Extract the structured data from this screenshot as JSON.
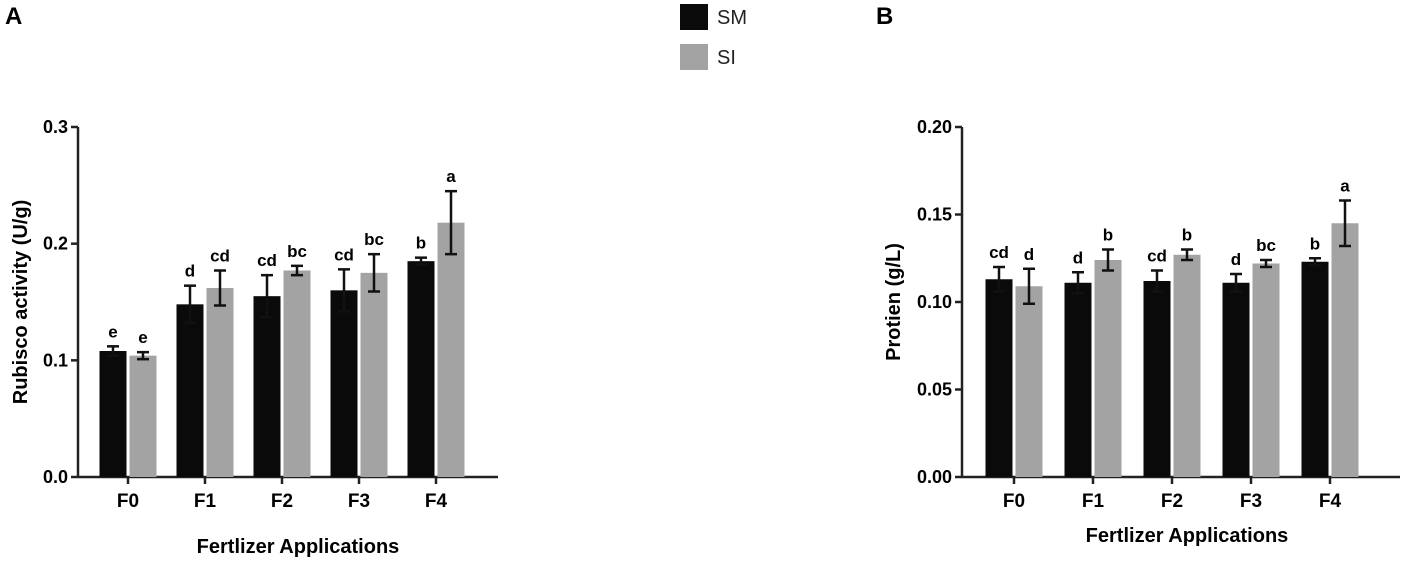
{
  "legend": [
    {
      "label": "SM",
      "color": "#0a0a0a"
    },
    {
      "label": "SI",
      "color": "#a3a3a3"
    }
  ],
  "chart_data": [
    {
      "panel": "A",
      "type": "bar",
      "categories": [
        "F0",
        "F1",
        "F2",
        "F3",
        "F4"
      ],
      "xlabel": "Fertlizer Applications",
      "ylabel": "Rubisco activity (U/g)",
      "ylim": [
        0,
        0.3
      ],
      "yticks": [
        "0.0",
        "0.1",
        "0.2",
        "0.3"
      ],
      "series": [
        {
          "name": "SM",
          "color": "#0a0a0a",
          "values": [
            0.108,
            0.148,
            0.155,
            0.16,
            0.185
          ],
          "errors": [
            0.004,
            0.016,
            0.018,
            0.018,
            0.003
          ],
          "labels": [
            "e",
            "d",
            "cd",
            "cd",
            "b"
          ]
        },
        {
          "name": "SI",
          "color": "#a3a3a3",
          "values": [
            0.104,
            0.162,
            0.177,
            0.175,
            0.218
          ],
          "errors": [
            0.003,
            0.015,
            0.004,
            0.016,
            0.027
          ],
          "labels": [
            "e",
            "cd",
            "bc",
            "bc",
            "a"
          ]
        }
      ]
    },
    {
      "panel": "B",
      "type": "bar",
      "categories": [
        "F0",
        "F1",
        "F2",
        "F3",
        "F4"
      ],
      "xlabel": "Fertlizer Applications",
      "ylabel": "Protien (g/L)",
      "ylim": [
        0,
        0.2
      ],
      "yticks": [
        "0.00",
        "0.05",
        "0.10",
        "0.15",
        "0.20"
      ],
      "series": [
        {
          "name": "SM",
          "color": "#0a0a0a",
          "values": [
            0.113,
            0.111,
            0.112,
            0.111,
            0.123
          ],
          "errors": [
            0.007,
            0.006,
            0.006,
            0.005,
            0.002
          ],
          "labels": [
            "cd",
            "d",
            "cd",
            "d",
            "b"
          ]
        },
        {
          "name": "SI",
          "color": "#a3a3a3",
          "values": [
            0.109,
            0.124,
            0.127,
            0.122,
            0.145
          ],
          "errors": [
            0.01,
            0.006,
            0.003,
            0.002,
            0.013
          ],
          "labels": [
            "d",
            "b",
            "b",
            "bc",
            "a"
          ]
        }
      ]
    }
  ]
}
